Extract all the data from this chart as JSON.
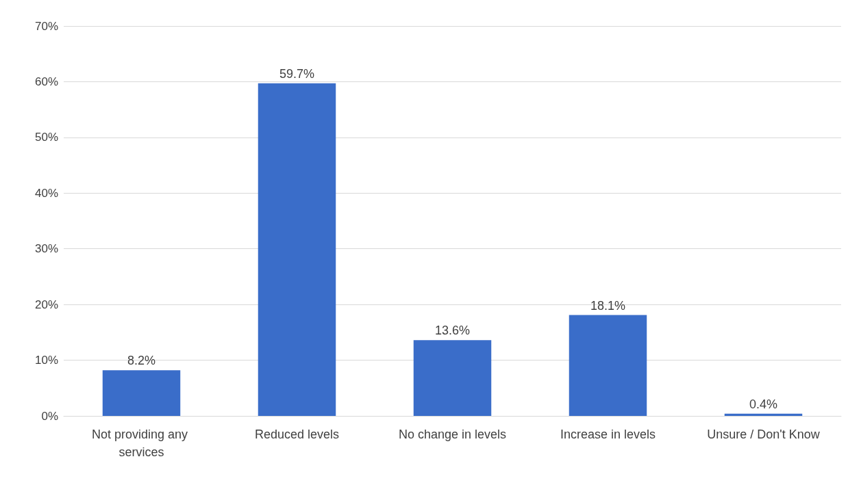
{
  "chart_data": {
    "type": "bar",
    "categories": [
      "Not providing any services",
      "Reduced levels",
      "No change in levels",
      "Increase in levels",
      "Unsure / Don't Know"
    ],
    "values": [
      8.2,
      59.7,
      13.6,
      18.1,
      0.4
    ],
    "value_labels": [
      "8.2%",
      "59.7%",
      "13.6%",
      "18.1%",
      "0.4%"
    ],
    "color": "#3a6dc9",
    "ylim": [
      0,
      70
    ],
    "yticks": [
      {
        "value": 0,
        "label": "0%"
      },
      {
        "value": 10,
        "label": "10%"
      },
      {
        "value": 20,
        "label": "20%"
      },
      {
        "value": 30,
        "label": "30%"
      },
      {
        "value": 40,
        "label": "40%"
      },
      {
        "value": 50,
        "label": "50%"
      },
      {
        "value": 60,
        "label": "60%"
      },
      {
        "value": 70,
        "label": "70%"
      }
    ],
    "grid": "y"
  }
}
